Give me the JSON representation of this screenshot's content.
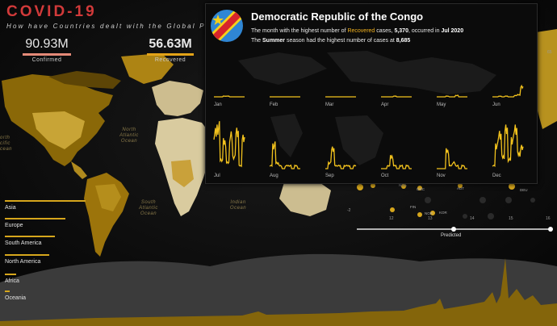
{
  "header": {
    "title": "COVID-19",
    "subtitle": "How have Countries dealt with the Global Pandemic"
  },
  "kpis": [
    {
      "value": "90.93M",
      "label": "Confirmed",
      "color": "#e48a78"
    },
    {
      "value": "56.63M",
      "label": "Recovered",
      "color": "#e3a318"
    }
  ],
  "continents": [
    "Asia",
    "Europe",
    "South America",
    "North America",
    "Africa",
    "Oceania"
  ],
  "oceans": [
    "North Atlantic Ocean",
    "South Atlantic Ocean",
    "Indian Ocean",
    "orth cific cean"
  ],
  "tooltip": {
    "country": "Democratic Republic of the Congo",
    "line1": {
      "pre": "The month with the highest number of ",
      "highlight": "Recovered",
      "mid": " cases, ",
      "value": "5,370",
      "mid2": ", occurred in ",
      "month": "Jul 2020"
    },
    "line2": {
      "pre": "The ",
      "season": "Summer",
      "mid": " season had the highest number of cases at ",
      "value": "8,685"
    },
    "months": [
      "Jan",
      "Feb",
      "Mar",
      "Apr",
      "May",
      "Jun",
      "Jul",
      "Aug",
      "Sep",
      "Oct",
      "Nov",
      "Dec"
    ],
    "spark_color": "#f2c21d",
    "flag_colors": {
      "field": "#2f86d4",
      "band": "#d7252b",
      "edge": "#f6d01a",
      "star": "#f6d01a"
    }
  },
  "scatter": {
    "codes": [
      "URY",
      "GUY",
      "NGA",
      "GRC",
      "AUT",
      "DEU",
      "FIN",
      "NOR",
      "KOR"
    ],
    "y_ticks": [
      "-2"
    ],
    "x_ticks": [
      "12",
      "13",
      "14",
      "15",
      "16"
    ],
    "side_tick": "65"
  },
  "slider": {
    "label": "Predicted"
  },
  "colors": {
    "accent": "#d6a61c",
    "title": "#d23a3a",
    "land_dark": "#7b5a06",
    "land_light": "#d8c9a0"
  }
}
